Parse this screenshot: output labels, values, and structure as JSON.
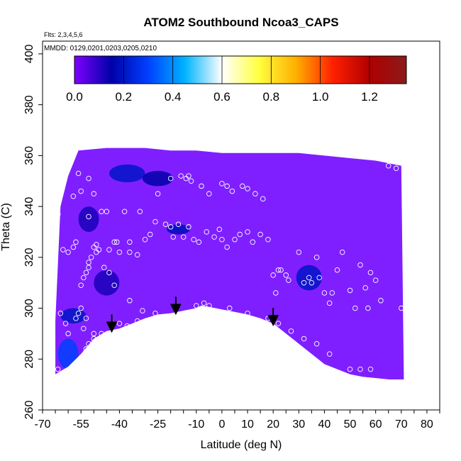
{
  "chart_data": {
    "type": "heatmap",
    "title": "ATOM2 Southbound Ncoa3_CAPS",
    "subtitle_flights": "Flts: 2,3,4,5,6",
    "subtitle_dates": "MMDD: 0129,0201,0203,0205,0210",
    "xlabel": "Latitude (deg N)",
    "ylabel": "Theta (C)",
    "xlim": [
      -70,
      85
    ],
    "ylim": [
      260,
      405
    ],
    "x_ticks": [
      -70,
      -55,
      -40,
      -25,
      -10,
      0,
      10,
      20,
      30,
      40,
      50,
      60,
      70,
      80
    ],
    "y_ticks": [
      260,
      280,
      300,
      320,
      340,
      360,
      380,
      400
    ],
    "colorbar": {
      "ticks": [
        0.0,
        0.2,
        0.4,
        0.6,
        0.8,
        1.0,
        1.2
      ],
      "range": [
        0.0,
        1.35
      ],
      "colors": [
        "#7f00ff",
        "#0000a8",
        "#0040ff",
        "#00b4ff",
        "#ffffff",
        "#ffff40",
        "#ffb000",
        "#ff2000",
        "#b00000",
        "#8b1a1a"
      ]
    },
    "field_color": "#7f1fff",
    "mask_color": "#ffffff",
    "arrows_at_lat": [
      -43,
      -18,
      20
    ],
    "bottom_boundary": [
      [
        -65,
        274
      ],
      [
        -60,
        277
      ],
      [
        -55,
        282
      ],
      [
        -50,
        288
      ],
      [
        -45,
        291
      ],
      [
        -40,
        292
      ],
      [
        -35,
        294
      ],
      [
        -30,
        296
      ],
      [
        -25,
        297.5
      ],
      [
        -20,
        298
      ],
      [
        -15,
        299
      ],
      [
        -10,
        300
      ],
      [
        -8,
        301
      ],
      [
        -5,
        300.5
      ],
      [
        0,
        299.5
      ],
      [
        5,
        298.5
      ],
      [
        10,
        297.5
      ],
      [
        15,
        296
      ],
      [
        20,
        294
      ],
      [
        25,
        290
      ],
      [
        30,
        286
      ],
      [
        35,
        282
      ],
      [
        40,
        278
      ],
      [
        45,
        276
      ],
      [
        50,
        274
      ],
      [
        55,
        273
      ],
      [
        60,
        272.5
      ],
      [
        65,
        272
      ],
      [
        71,
        272
      ]
    ],
    "top_boundary": [
      [
        -65,
        295
      ],
      [
        -63,
        340
      ],
      [
        -60,
        352
      ],
      [
        -56,
        362
      ],
      [
        -45,
        363
      ],
      [
        -30,
        363
      ],
      [
        -20,
        362
      ],
      [
        -10,
        362
      ],
      [
        0,
        361
      ],
      [
        10,
        361
      ],
      [
        20,
        361
      ],
      [
        30,
        361
      ],
      [
        40,
        360
      ],
      [
        50,
        359
      ],
      [
        60,
        358
      ],
      [
        65,
        357
      ],
      [
        70,
        356
      ]
    ],
    "dark_patches": [
      {
        "lat": -37,
        "theta": 353,
        "w": 14,
        "h": 7,
        "v": 0.2
      },
      {
        "lat": -25,
        "theta": 351,
        "w": 12,
        "h": 6,
        "v": 0.15
      },
      {
        "lat": -52,
        "theta": 335,
        "w": 8,
        "h": 10,
        "v": 0.12
      },
      {
        "lat": -17,
        "theta": 331,
        "w": 9,
        "h": 4,
        "v": 0.18
      },
      {
        "lat": -45,
        "theta": 310,
        "w": 10,
        "h": 10,
        "v": 0.12
      },
      {
        "lat": -58,
        "theta": 297,
        "w": 10,
        "h": 6,
        "v": 0.2
      },
      {
        "lat": -60,
        "theta": 282,
        "w": 8,
        "h": 12,
        "v": 0.3
      },
      {
        "lat": 34,
        "theta": 312,
        "w": 10,
        "h": 10,
        "v": 0.2
      }
    ],
    "observations": [
      [
        -66,
        334
      ],
      [
        -65,
        330
      ],
      [
        -64,
        337
      ],
      [
        -62,
        323
      ],
      [
        -60,
        322
      ],
      [
        -58,
        324
      ],
      [
        -57,
        326
      ],
      [
        -55,
        300
      ],
      [
        -55,
        309
      ],
      [
        -54,
        312
      ],
      [
        -54,
        292
      ],
      [
        -53,
        314
      ],
      [
        -52,
        318
      ],
      [
        -52,
        316
      ],
      [
        -51,
        320
      ],
      [
        -50,
        324
      ],
      [
        -49,
        322
      ],
      [
        -49,
        325
      ],
      [
        -48,
        323
      ],
      [
        -53,
        284
      ],
      [
        -52,
        286
      ],
      [
        -50,
        288
      ],
      [
        -48,
        287
      ],
      [
        -63,
        298
      ],
      [
        -61,
        294
      ],
      [
        -60,
        290
      ],
      [
        -57,
        296
      ],
      [
        -56,
        298
      ],
      [
        -53,
        296
      ],
      [
        -56,
        353
      ],
      [
        -55,
        346
      ],
      [
        -52,
        336
      ],
      [
        -50,
        345
      ],
      [
        -47,
        338
      ],
      [
        -45,
        338
      ],
      [
        -40,
        322
      ],
      [
        -42,
        326
      ],
      [
        -38,
        338
      ],
      [
        -36,
        322
      ],
      [
        -33,
        321
      ],
      [
        -32,
        338
      ],
      [
        -30,
        327
      ],
      [
        -28,
        329
      ],
      [
        -26,
        334
      ],
      [
        -25,
        345
      ],
      [
        -22,
        333
      ],
      [
        -20,
        332
      ],
      [
        -19,
        328
      ],
      [
        -17,
        333
      ],
      [
        -15,
        328
      ],
      [
        -13,
        332
      ],
      [
        -11,
        327
      ],
      [
        -9,
        326
      ],
      [
        -6,
        330
      ],
      [
        -3,
        328
      ],
      [
        -1,
        331
      ],
      [
        0,
        327
      ],
      [
        2,
        324
      ],
      [
        5,
        327
      ],
      [
        7,
        329
      ],
      [
        10,
        330
      ],
      [
        12,
        326
      ],
      [
        15,
        329
      ],
      [
        18,
        327
      ],
      [
        -58,
        344
      ],
      [
        -52,
        351
      ],
      [
        -44,
        323
      ],
      [
        -41,
        326
      ],
      [
        -36,
        326
      ],
      [
        -46,
        316
      ],
      [
        -44,
        314
      ],
      [
        -42,
        309
      ],
      [
        -36,
        303
      ],
      [
        -31,
        299
      ],
      [
        -26,
        298
      ],
      [
        -40,
        294
      ],
      [
        -37,
        293
      ],
      [
        -33,
        295
      ],
      [
        -20,
        351
      ],
      [
        -16,
        352
      ],
      [
        -14,
        351
      ],
      [
        -13,
        352
      ],
      [
        -12,
        350
      ],
      [
        -8,
        348
      ],
      [
        -5,
        345
      ],
      [
        0,
        349
      ],
      [
        2,
        348
      ],
      [
        4,
        346
      ],
      [
        8,
        348
      ],
      [
        10,
        347
      ],
      [
        13,
        345
      ],
      [
        16,
        343
      ],
      [
        20,
        313
      ],
      [
        21,
        306
      ],
      [
        22,
        315
      ],
      [
        23,
        315
      ],
      [
        25,
        313
      ],
      [
        26,
        311
      ],
      [
        30,
        322
      ],
      [
        32,
        310
      ],
      [
        34,
        312
      ],
      [
        35,
        310
      ],
      [
        37,
        320
      ],
      [
        38,
        312
      ],
      [
        40,
        306
      ],
      [
        42,
        302
      ],
      [
        43,
        306
      ],
      [
        45,
        315
      ],
      [
        47,
        322
      ],
      [
        50,
        307
      ],
      [
        52,
        300
      ],
      [
        54,
        317
      ],
      [
        56,
        308
      ],
      [
        57,
        300
      ],
      [
        58,
        314
      ],
      [
        60,
        311
      ],
      [
        62,
        303
      ],
      [
        65,
        356
      ],
      [
        68,
        355
      ],
      [
        70,
        300
      ],
      [
        -7,
        302
      ],
      [
        -10,
        301
      ],
      [
        -5,
        301
      ],
      [
        3,
        300
      ],
      [
        10,
        298
      ],
      [
        18,
        296
      ],
      [
        22,
        294
      ],
      [
        27,
        291
      ],
      [
        32,
        288
      ],
      [
        37,
        286
      ],
      [
        42,
        282
      ],
      [
        50,
        276
      ],
      [
        54,
        276
      ],
      [
        58,
        276
      ],
      [
        -58,
        276
      ],
      [
        -64,
        276
      ],
      [
        -50,
        290
      ],
      [
        -47,
        290
      ]
    ]
  }
}
